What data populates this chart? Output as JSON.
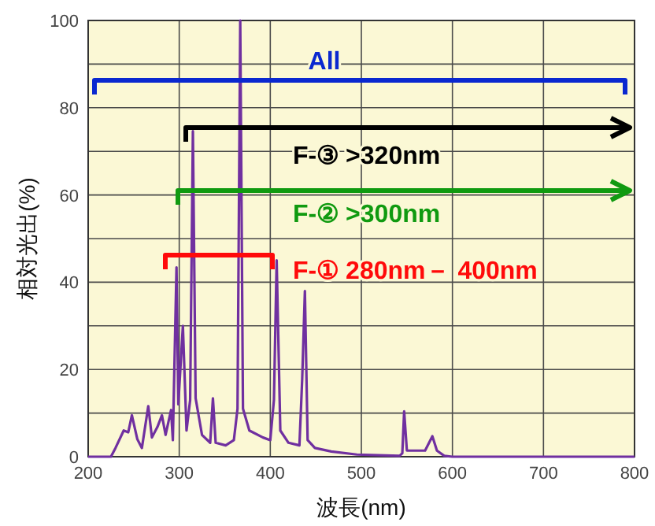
{
  "chart_data": {
    "type": "line",
    "xlabel": "波長(nm)",
    "ylabel": "相対光出(%)",
    "xlim": [
      200,
      800
    ],
    "ylim": [
      0,
      100
    ],
    "xticks": [
      200,
      300,
      400,
      500,
      600,
      700,
      800
    ],
    "yticks": [
      0,
      {
        "value": 10,
        "label": null
      },
      20,
      {
        "value": 30,
        "label": null
      },
      40,
      {
        "value": 50,
        "label": null
      },
      60,
      {
        "value": 70,
        "label": null
      },
      80,
      {
        "value": 90,
        "label": null
      },
      100
    ],
    "grid": true,
    "series": [
      {
        "color": "#7030a0",
        "x": [
          200,
          225,
          230,
          239,
          244,
          248,
          254,
          259,
          266,
          270,
          276,
          281,
          285,
          291,
          293,
          297,
          299,
          304,
          308,
          312,
          315,
          318,
          325,
          334,
          337,
          340,
          351,
          360,
          364,
          367,
          370,
          377,
          392,
          400,
          404,
          407,
          411,
          420,
          432,
          435,
          438,
          441,
          449,
          467,
          495,
          542,
          545,
          547,
          550,
          570,
          578,
          583,
          591,
          600,
          800
        ],
        "values": [
          0,
          0,
          2,
          6,
          5.6,
          9.5,
          4,
          2,
          11.6,
          4.4,
          6.8,
          9.5,
          5,
          10.7,
          3.8,
          43.4,
          12,
          30,
          6,
          13,
          74.6,
          13.4,
          5,
          3.2,
          13.4,
          3.2,
          2.6,
          3.8,
          11,
          100,
          11,
          6,
          4.4,
          3.8,
          13,
          45,
          6,
          3.2,
          2.6,
          17.6,
          38,
          3.8,
          2,
          1.2,
          0.5,
          0.2,
          0.8,
          10.4,
          1.4,
          1.4,
          4.7,
          1.4,
          0.2,
          0,
          0
        ]
      }
    ],
    "annotations": [
      "All",
      "F-③ >320nm",
      "F-② >300nm",
      "F-① 280nm－ 400nm"
    ]
  }
}
